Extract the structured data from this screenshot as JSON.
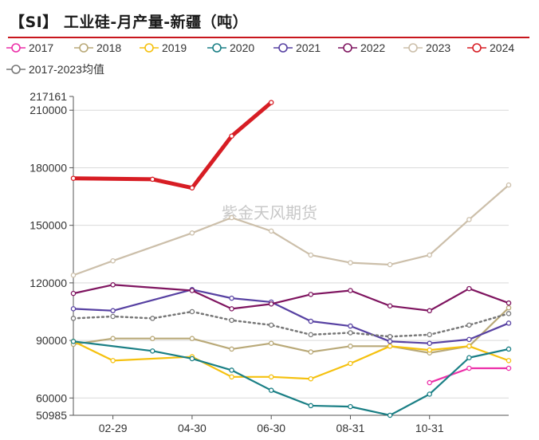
{
  "title": "【SI】 工业硅-月产量-新疆（吨）",
  "watermark": "紫金天风期货",
  "colors": {
    "accent": "#c8161d",
    "grid": "#d9d9d9",
    "axis": "#555555"
  },
  "chart_data": {
    "type": "line",
    "title": "【SI】 工业硅-月产量-新疆（吨）",
    "xlabel": "",
    "ylabel": "",
    "ylim": [
      50985,
      217161
    ],
    "yticks": [
      {
        "value": 217161,
        "label": "217161"
      },
      {
        "value": 210000,
        "label": "210000"
      },
      {
        "value": 180000,
        "label": "180000"
      },
      {
        "value": 150000,
        "label": "150000"
      },
      {
        "value": 120000,
        "label": "120000"
      },
      {
        "value": 90000,
        "label": "90000"
      },
      {
        "value": 60000,
        "label": "60000"
      },
      {
        "value": 50985,
        "label": "50985"
      }
    ],
    "gridlines": [
      210000,
      180000,
      150000,
      120000,
      90000,
      60000
    ],
    "x_months": [
      1,
      2,
      3,
      4,
      5,
      6,
      7,
      8,
      9,
      10,
      11,
      12
    ],
    "xticks": [
      {
        "month": 2,
        "label": "02-29"
      },
      {
        "month": 4,
        "label": "04-30"
      },
      {
        "month": 6,
        "label": "06-30"
      },
      {
        "month": 8,
        "label": "08-31"
      },
      {
        "month": 10,
        "label": "10-31"
      }
    ],
    "series": [
      {
        "name": "2017",
        "color": "#ec2fa8",
        "dash": "",
        "width": 2.2,
        "x": [
          10,
          11,
          12
        ],
        "values": [
          68000,
          75500,
          75500
        ]
      },
      {
        "name": "2018",
        "color": "#b9a978",
        "dash": "",
        "width": 2.2,
        "x": [
          1,
          2,
          3,
          4,
          5,
          6,
          7,
          8,
          9,
          10,
          11,
          12
        ],
        "values": [
          88000,
          91000,
          91000,
          91000,
          85500,
          88500,
          84000,
          87000,
          87000,
          83500,
          87000,
          107000
        ]
      },
      {
        "name": "2019",
        "color": "#f5c10f",
        "dash": "",
        "width": 2.2,
        "x": [
          1,
          2,
          4,
          5,
          6,
          7,
          8,
          9,
          10,
          11,
          12
        ],
        "values": [
          89500,
          79500,
          81500,
          71000,
          71000,
          70000,
          78000,
          87000,
          85000,
          87000,
          79500
        ]
      },
      {
        "name": "2020",
        "color": "#1a7f85",
        "dash": "",
        "width": 2.2,
        "x": [
          1,
          3,
          4,
          5,
          6,
          7,
          8,
          9,
          10,
          11,
          12
        ],
        "values": [
          89500,
          84500,
          80500,
          74500,
          64000,
          56000,
          55500,
          51000,
          62000,
          81000,
          85500
        ]
      },
      {
        "name": "2021",
        "color": "#5741a2",
        "dash": "",
        "width": 2.2,
        "x": [
          1,
          2,
          4,
          5,
          6,
          7,
          8,
          9,
          10,
          11,
          12
        ],
        "values": [
          106500,
          105500,
          116500,
          112000,
          110000,
          100000,
          97500,
          89500,
          88500,
          90500,
          99000
        ]
      },
      {
        "name": "2022",
        "color": "#7f1560",
        "dash": "",
        "width": 2.2,
        "x": [
          1,
          2,
          4,
          5,
          6,
          7,
          8,
          9,
          10,
          11,
          12
        ],
        "values": [
          114500,
          119000,
          116000,
          106500,
          109000,
          114000,
          116000,
          108000,
          105500,
          117000,
          109500
        ]
      },
      {
        "name": "2023",
        "color": "#ccbfaa",
        "dash": "",
        "width": 2.2,
        "x": [
          1,
          2,
          4,
          5,
          6,
          7,
          8,
          9,
          10,
          11,
          12
        ],
        "values": [
          124000,
          131500,
          146000,
          154000,
          147000,
          134500,
          130500,
          129500,
          134500,
          153000,
          171000
        ]
      },
      {
        "name": "2024",
        "color": "#d71d24",
        "dash": "",
        "width": 5,
        "x": [
          1,
          3,
          4,
          5,
          6
        ],
        "values": [
          174500,
          174000,
          169500,
          196500,
          214000
        ]
      },
      {
        "name": "2017-2023均值",
        "color": "#777777",
        "dash": "2,4",
        "width": 2.5,
        "x": [
          1,
          2,
          3,
          4,
          5,
          6,
          7,
          8,
          9,
          10,
          11,
          12
        ],
        "values": [
          101500,
          102500,
          101500,
          105000,
          100500,
          98000,
          93000,
          94000,
          92000,
          93000,
          98000,
          104000
        ]
      }
    ],
    "legend": [
      {
        "name": "2017",
        "color": "#ec2fa8"
      },
      {
        "name": "2018",
        "color": "#b9a978"
      },
      {
        "name": "2019",
        "color": "#f5c10f"
      },
      {
        "name": "2020",
        "color": "#1a7f85"
      },
      {
        "name": "2021",
        "color": "#5741a2"
      },
      {
        "name": "2022",
        "color": "#7f1560"
      },
      {
        "name": "2023",
        "color": "#ccbfaa"
      },
      {
        "name": "2024",
        "color": "#d71d24"
      },
      {
        "name": "2017-2023均值",
        "color": "#777777"
      }
    ],
    "legend_position": "top"
  }
}
